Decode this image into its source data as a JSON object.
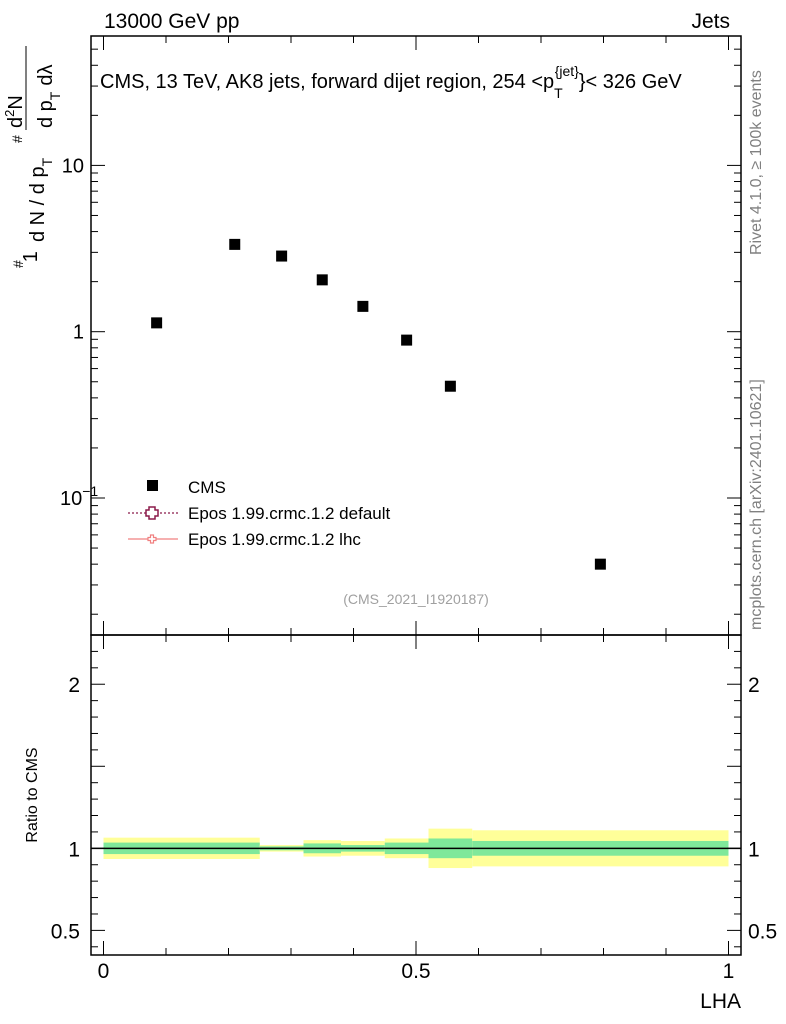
{
  "header": {
    "energy_label": "13000 GeV pp",
    "process_label": "Jets"
  },
  "side_text": {
    "rivet": "Rivet 4.1.0, ≥ 100k events",
    "mcplots": "mcplots.cern.ch [arXiv:2401.10621]"
  },
  "colors": {
    "data_marker": "#000000",
    "epos_default": "#8b1a4a",
    "epos_lhc": "#f08080",
    "band_inner": "#7fe89a",
    "band_outer": "#ffff99"
  },
  "chart_data": [
    {
      "type": "scatter",
      "title_parts": {
        "prefix": "CMS, 13 TeV, AK8 jets, forward dijet region, 254 <p",
        "sub": "T",
        "sup": "{jet}",
        "suffix": "}< 326 GeV"
      },
      "ylabel_parts": [
        "#",
        "1",
        "d N / d p",
        "T",
        "#",
        "d",
        "2",
        "N",
        "d p",
        "T",
        "dλ"
      ],
      "yscale": "log",
      "ylim": [
        0.015,
        60
      ],
      "xlim": [
        -0.02,
        1.02
      ],
      "yticks": [
        {
          "value": 10,
          "label": "10"
        },
        {
          "value": 1,
          "label": "1"
        },
        {
          "value": 0.1,
          "label": "10",
          "sup": "−1"
        }
      ],
      "series": [
        {
          "name": "CMS",
          "marker": "square",
          "x": [
            0.085,
            0.21,
            0.285,
            0.35,
            0.415,
            0.485,
            0.555,
            0.795
          ],
          "y": [
            1.13,
            3.35,
            2.85,
            2.05,
            1.42,
            0.89,
            0.47,
            0.04
          ]
        }
      ],
      "legend": [
        {
          "label": "CMS",
          "style": "square"
        },
        {
          "label": "Epos 1.99.crmc.1.2 default",
          "style": "dotted-cross"
        },
        {
          "label": "Epos 1.99.crmc.1.2 lhc",
          "style": "solid-cross"
        }
      ],
      "legend_position": "lower-left",
      "watermark": "(CMS_2021_I1920187)"
    },
    {
      "type": "ratio",
      "ylabel": "Ratio to CMS",
      "xlabel": "LHA",
      "ylim": [
        0.35,
        2.3
      ],
      "xlim": [
        -0.02,
        1.02
      ],
      "yticks": [
        {
          "value": 2,
          "label": "2"
        },
        {
          "value": 1,
          "label": "1"
        },
        {
          "value": 0.5,
          "label": "0.5"
        }
      ],
      "xticks": [
        {
          "value": 0,
          "label": "0"
        },
        {
          "value": 0.5,
          "label": "0.5"
        },
        {
          "value": 1,
          "label": "1"
        }
      ],
      "bins": [
        {
          "x0": 0.0,
          "x1": 0.25,
          "inner": 0.035,
          "outer": 0.065
        },
        {
          "x0": 0.25,
          "x1": 0.32,
          "inner": 0.012,
          "outer": 0.02
        },
        {
          "x0": 0.32,
          "x1": 0.38,
          "inner": 0.03,
          "outer": 0.05
        },
        {
          "x0": 0.38,
          "x1": 0.45,
          "inner": 0.02,
          "outer": 0.045
        },
        {
          "x0": 0.45,
          "x1": 0.52,
          "inner": 0.035,
          "outer": 0.06
        },
        {
          "x0": 0.52,
          "x1": 0.59,
          "inner": 0.06,
          "outer": 0.12
        },
        {
          "x0": 0.59,
          "x1": 1.0,
          "inner": 0.045,
          "outer": 0.11
        }
      ]
    }
  ]
}
